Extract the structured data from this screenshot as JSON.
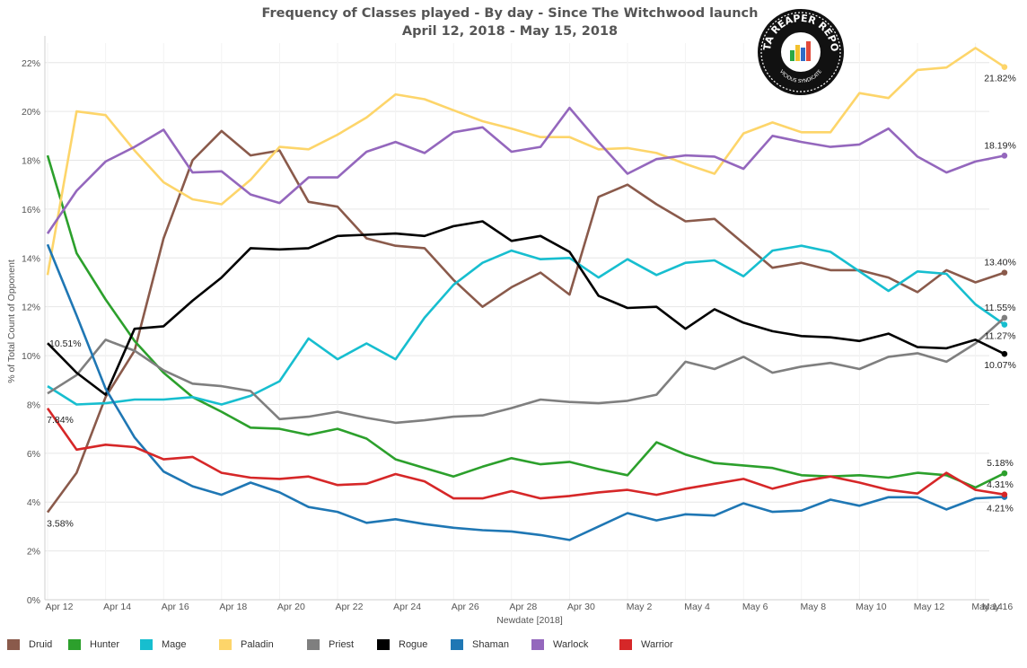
{
  "title_line1": "Frequency of Classes played - By day - Since The Witchwood launch",
  "title_line2": "April 12, 2018 - May 15, 2018",
  "logo": {
    "text": "DATA REAPER REPORT",
    "subtext": "VICIOUS SYNDICATE"
  },
  "chart_data": {
    "type": "line",
    "xlabel": "Newdate [2018]",
    "ylabel": "% of Total Count of Opponent",
    "ylim": [
      0,
      22.8
    ],
    "yticks": [
      0,
      2,
      4,
      6,
      8,
      10,
      12,
      14,
      16,
      18,
      20,
      22
    ],
    "ytick_labels": [
      "0%",
      "2%",
      "4%",
      "6%",
      "8%",
      "10%",
      "12%",
      "14%",
      "16%",
      "18%",
      "20%",
      "22%"
    ],
    "x_tick_labels": [
      "Apr 12",
      "Apr 14",
      "Apr 16",
      "Apr 18",
      "Apr 20",
      "Apr 22",
      "Apr 24",
      "Apr 26",
      "Apr 28",
      "Apr 30",
      "May 2",
      "May 4",
      "May 6",
      "May 8",
      "May 10",
      "May 12",
      "May 14",
      "May 16"
    ],
    "x": [
      "Apr 12",
      "Apr 13",
      "Apr 14",
      "Apr 15",
      "Apr 16",
      "Apr 17",
      "Apr 18",
      "Apr 19",
      "Apr 20",
      "Apr 21",
      "Apr 22",
      "Apr 23",
      "Apr 24",
      "Apr 25",
      "Apr 26",
      "Apr 27",
      "Apr 28",
      "Apr 29",
      "Apr 30",
      "May 1",
      "May 2",
      "May 3",
      "May 4",
      "May 5",
      "May 6",
      "May 7",
      "May 8",
      "May 9",
      "May 10",
      "May 11",
      "May 12",
      "May 13",
      "May 14",
      "May 15"
    ],
    "grid": true,
    "legend_position": "bottom",
    "series": [
      {
        "name": "Druid",
        "color": "#8a5a4b",
        "values": [
          3.58,
          5.2,
          8.3,
          10.2,
          14.8,
          18.0,
          19.2,
          18.2,
          18.4,
          16.3,
          16.1,
          14.8,
          14.5,
          14.4,
          13.1,
          12.0,
          12.8,
          13.4,
          12.5,
          16.5,
          17.0,
          16.2,
          15.5,
          15.6,
          14.6,
          13.6,
          13.8,
          13.5,
          13.5,
          13.2,
          12.6,
          13.5,
          13.0,
          13.4
        ],
        "labels": [
          {
            "index": 0,
            "text": "3.58%",
            "pos": "below"
          },
          {
            "index": 33,
            "text": "13.40%",
            "pos": "above"
          }
        ]
      },
      {
        "name": "Hunter",
        "color": "#2ca02c",
        "values": [
          18.2,
          14.2,
          12.3,
          10.6,
          9.3,
          8.3,
          7.7,
          7.05,
          7.0,
          6.75,
          7.0,
          6.6,
          5.75,
          5.4,
          5.05,
          5.45,
          5.8,
          5.55,
          5.65,
          5.35,
          5.1,
          6.45,
          5.95,
          5.6,
          5.5,
          5.4,
          5.1,
          5.05,
          5.1,
          5.0,
          5.2,
          5.1,
          4.6,
          5.18
        ],
        "labels": [
          {
            "index": 33,
            "text": "5.18%",
            "pos": "above"
          }
        ]
      },
      {
        "name": "Mage",
        "color": "#17becf",
        "values": [
          8.75,
          8.0,
          8.05,
          8.2,
          8.2,
          8.3,
          8.0,
          8.35,
          8.95,
          10.7,
          9.85,
          10.5,
          9.85,
          11.55,
          12.9,
          13.8,
          14.3,
          13.95,
          14.0,
          13.2,
          13.95,
          13.3,
          13.8,
          13.9,
          13.25,
          14.3,
          14.5,
          14.25,
          13.45,
          12.65,
          13.45,
          13.35,
          12.1,
          11.27
        ],
        "labels": [
          {
            "index": 33,
            "text": "11.27%",
            "pos": "below"
          }
        ]
      },
      {
        "name": "Paladin",
        "color": "#fdd56a",
        "values": [
          13.3,
          20.0,
          19.85,
          18.4,
          17.1,
          16.4,
          16.2,
          17.2,
          18.55,
          18.45,
          19.05,
          19.75,
          20.7,
          20.5,
          20.05,
          19.6,
          19.3,
          18.95,
          18.95,
          18.45,
          18.5,
          18.3,
          17.85,
          17.45,
          19.1,
          19.55,
          19.15,
          19.15,
          20.75,
          20.55,
          21.7,
          21.8,
          22.6,
          21.82
        ],
        "labels": [
          {
            "index": 33,
            "text": "21.82%",
            "pos": "below"
          }
        ]
      },
      {
        "name": "Priest",
        "color": "#7f7f7f",
        "values": [
          8.45,
          9.2,
          10.65,
          10.2,
          9.4,
          8.85,
          8.75,
          8.55,
          7.4,
          7.5,
          7.7,
          7.45,
          7.25,
          7.35,
          7.5,
          7.55,
          7.85,
          8.2,
          8.1,
          8.05,
          8.15,
          8.4,
          9.75,
          9.45,
          9.95,
          9.3,
          9.55,
          9.7,
          9.45,
          9.95,
          10.1,
          9.75,
          10.5,
          11.55
        ],
        "labels": [
          {
            "index": 33,
            "text": "11.55%",
            "pos": "above"
          }
        ]
      },
      {
        "name": "Rogue",
        "color": "#000000",
        "values": [
          10.51,
          9.3,
          8.4,
          11.1,
          11.2,
          12.25,
          13.2,
          14.4,
          14.35,
          14.4,
          14.9,
          14.95,
          15.0,
          14.9,
          15.3,
          15.5,
          14.7,
          14.9,
          14.25,
          12.45,
          11.95,
          12.0,
          11.1,
          11.9,
          11.35,
          11.0,
          10.8,
          10.75,
          10.6,
          10.9,
          10.35,
          10.3,
          10.65,
          10.07
        ],
        "labels": [
          {
            "index": 0,
            "text": "10.51%",
            "pos": "right"
          },
          {
            "index": 33,
            "text": "10.07%",
            "pos": "below"
          }
        ]
      },
      {
        "name": "Shaman",
        "color": "#1f77b4",
        "values": [
          14.55,
          11.65,
          8.65,
          6.65,
          5.25,
          4.65,
          4.3,
          4.8,
          4.4,
          3.8,
          3.6,
          3.15,
          3.3,
          3.1,
          2.95,
          2.85,
          2.8,
          2.65,
          2.45,
          3.0,
          3.55,
          3.25,
          3.5,
          3.45,
          3.95,
          3.6,
          3.65,
          4.1,
          3.85,
          4.2,
          4.2,
          3.7,
          4.15,
          4.21
        ],
        "labels": [
          {
            "index": 33,
            "text": "4.21%",
            "pos": "below"
          }
        ]
      },
      {
        "name": "Warlock",
        "color": "#9467bd",
        "values": [
          15.0,
          16.75,
          17.95,
          18.55,
          19.25,
          17.5,
          17.55,
          16.6,
          16.25,
          17.3,
          17.3,
          18.35,
          18.75,
          18.3,
          19.15,
          19.35,
          18.35,
          18.55,
          20.15,
          18.75,
          17.45,
          18.05,
          18.2,
          18.15,
          17.65,
          19.0,
          18.75,
          18.55,
          18.65,
          19.3,
          18.15,
          17.5,
          17.95,
          18.19
        ],
        "labels": [
          {
            "index": 33,
            "text": "18.19%",
            "pos": "above"
          }
        ]
      },
      {
        "name": "Warrior",
        "color": "#d62728",
        "values": [
          7.84,
          6.15,
          6.35,
          6.25,
          5.75,
          5.85,
          5.2,
          5.0,
          4.95,
          5.05,
          4.7,
          4.75,
          5.15,
          4.85,
          4.15,
          4.15,
          4.45,
          4.15,
          4.25,
          4.4,
          4.5,
          4.3,
          4.55,
          4.75,
          4.95,
          4.55,
          4.85,
          5.05,
          4.8,
          4.5,
          4.35,
          5.2,
          4.5,
          4.31
        ],
        "labels": [
          {
            "index": 0,
            "text": "7.84%",
            "pos": "below"
          },
          {
            "index": 33,
            "text": "4.31%",
            "pos": "above"
          }
        ]
      }
    ]
  }
}
